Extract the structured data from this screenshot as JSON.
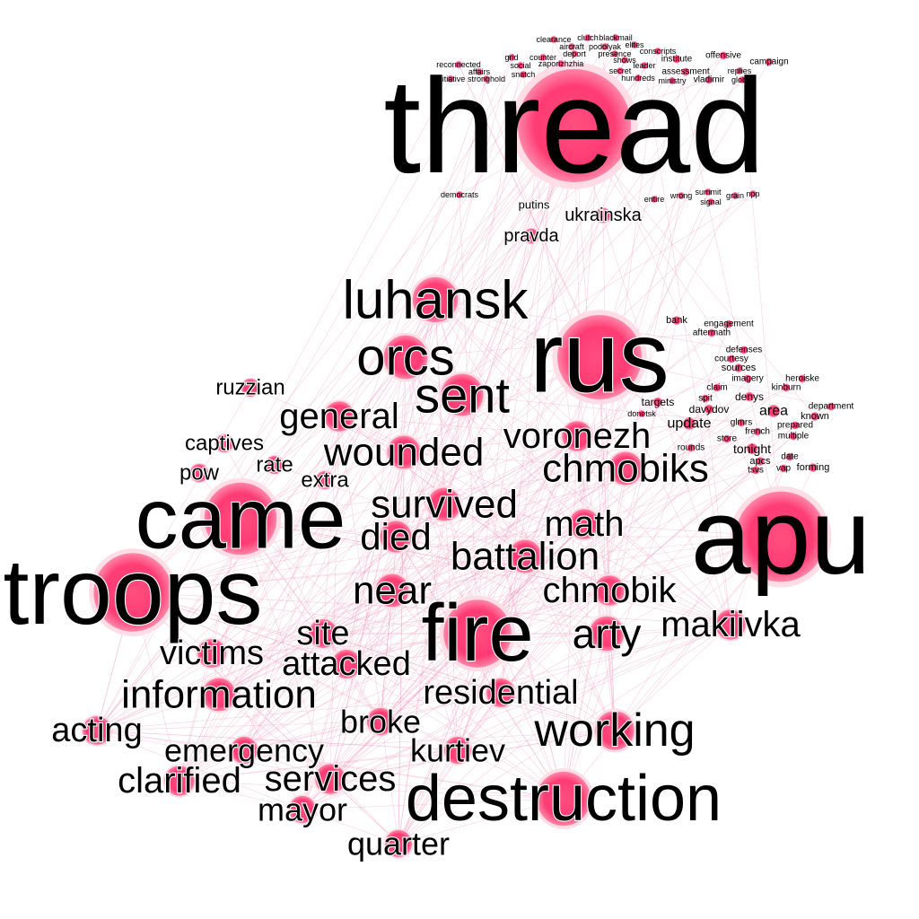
{
  "palette": {
    "node_fill": "#ff4f7f",
    "node_glow": "#ffdde6",
    "edge": "#f48fb1",
    "label": "#000000",
    "background": "#ffffff"
  },
  "words": {
    "thread": "thread",
    "rus": "rus",
    "apu": "apu",
    "troops": "troops",
    "came": "came",
    "fire": "fire",
    "destruction": "destruction",
    "luhansk": "luhansk",
    "orcs": "orcs",
    "sent": "sent",
    "general": "general",
    "wounded": "wounded",
    "voronezh": "voronezh",
    "chmobiks": "chmobiks",
    "survived": "survived",
    "died": "died",
    "math": "math",
    "battalion": "battalion",
    "near": "near",
    "chmobik": "chmobik",
    "arty": "arty",
    "makiivka": "makiivka",
    "site": "site",
    "victims": "victims",
    "attacked": "attacked",
    "information": "information",
    "residential": "residential",
    "broke": "broke",
    "working": "working",
    "acting": "acting",
    "emergency": "emergency",
    "kurtiev": "kurtiev",
    "clarified": "clarified",
    "services": "services",
    "mayor": "mayor",
    "quarter": "quarter",
    "ruzzian": "ruzzian",
    "captives": "captives",
    "rate": "rate",
    "pow": "pow",
    "extra": "extra",
    "ukrainska": "ukrainska",
    "pravda": "pravda",
    "putins": "putins",
    "democrats": "democrats",
    "entire": "entire",
    "wrong": "wrong",
    "summit": "summit",
    "signal": "signal",
    "grain": "grain",
    "npp": "npp",
    "clearance": "clearance",
    "clutch": "clutch",
    "blackmail": "blackmail",
    "aircraft": "aircraft",
    "podolyak": "podolyak",
    "elites": "elites",
    "grid": "grid",
    "counter": "counter",
    "deport": "deport",
    "presence": "presence",
    "conscripts": "conscripts",
    "offensive": "offensive",
    "reconnected": "reconnected",
    "social": "social",
    "zaporizhzhia": "zaporizhzhia",
    "shows": "shows",
    "institute": "institute",
    "campaign": "campaign",
    "affairs": "affairs",
    "snatch": "snatch",
    "secret": "secret",
    "leader": "leader",
    "assessment": "assessment",
    "replies": "replies",
    "initiative": "initiative",
    "stronghold": "stronghold",
    "hundreds": "hundreds",
    "ministry": "ministry",
    "vladimir": "vladimir",
    "global": "global",
    "bank": "bank",
    "engagement": "engagement",
    "aftermath": "aftermath",
    "defenses": "defenses",
    "courtesy": "courtesy",
    "sources": "sources",
    "imagery": "imagery",
    "heroiske": "heroiske",
    "claim": "claim",
    "kinburn": "kinburn",
    "targets": "targets",
    "spit": "spit",
    "denys": "denys",
    "department": "department",
    "davydov": "davydov",
    "area": "area",
    "known": "known",
    "donetsk": "donetsk",
    "update": "update",
    "glmrs": "glmrs",
    "french": "french",
    "prepared": "prepared",
    "store": "store",
    "multiple": "multiple",
    "rounds": "rounds",
    "tonight": "tonight",
    "apcs": "apcs",
    "date": "date",
    "tsvs": "tsvs",
    "vap": "vap",
    "forming": "forming"
  }
}
